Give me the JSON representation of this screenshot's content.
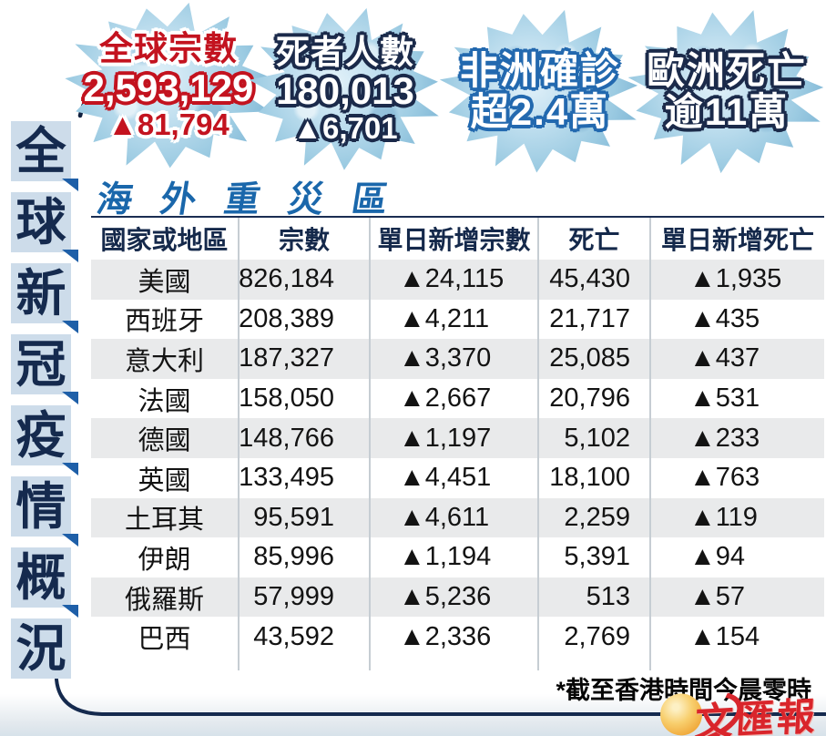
{
  "header_stats": [
    {
      "id": "global-cases",
      "title": "全球宗數",
      "value": "2,593,129",
      "delta": "▲81,794"
    },
    {
      "id": "total-deaths",
      "title": "死者人數",
      "value": "180,013",
      "delta": "▲6,701"
    },
    {
      "id": "africa-confirmed",
      "title": "非洲確診",
      "value": "超2.4萬"
    },
    {
      "id": "europe-deaths",
      "title": "歐洲死亡",
      "value": "逾11萬"
    }
  ],
  "sidebar_title": {
    "text": "全球新冠疫情概況",
    "chars": [
      "全",
      "球",
      "新",
      "冠",
      "疫",
      "情",
      "概",
      "況"
    ]
  },
  "section_title": "海外重災區",
  "table": {
    "headers": [
      "國家或地區",
      "宗數",
      "單日新增宗數",
      "死亡",
      "單日新增死亡"
    ],
    "rows": [
      [
        "美國",
        "826,184",
        "▲24,115",
        "45,430",
        "▲1,935"
      ],
      [
        "西班牙",
        "208,389",
        "▲4,211",
        "21,717",
        "▲435"
      ],
      [
        "意大利",
        "187,327",
        "▲3,370",
        "25,085",
        "▲437"
      ],
      [
        "法國",
        "158,050",
        "▲2,667",
        "20,796",
        "▲531"
      ],
      [
        "德國",
        "148,766",
        "▲1,197",
        "5,102",
        "▲233"
      ],
      [
        "英國",
        "133,495",
        "▲4,451",
        "18,100",
        "▲763"
      ],
      [
        "土耳其",
        "95,591",
        "▲4,611",
        "2,259",
        "▲119"
      ],
      [
        "伊朗",
        "85,996",
        "▲1,194",
        "5,391",
        "▲94"
      ],
      [
        "俄羅斯",
        "57,999",
        "▲5,236",
        "513",
        "▲57"
      ],
      [
        "巴西",
        "43,592",
        "▲2,336",
        "2,769",
        "▲154"
      ]
    ]
  },
  "footnote": "*截至香港時間今晨零時",
  "logo_text": "文匯報",
  "colors": {
    "navy": "#152a4e",
    "title_blue": "#1a67ab",
    "red": "#c3131f",
    "row_alt": "#e9eaeb",
    "virus_blue": "#9ccbe2",
    "sidebar_box": "#cddcea",
    "flag_blue": "#1e5fa8",
    "logo_red": "#d9252b",
    "logo_gold": "#f0a83a"
  },
  "chart_data": {
    "type": "table",
    "title": "海外重災區",
    "columns": [
      "國家或地區",
      "宗數",
      "單日新增宗數",
      "死亡",
      "單日新增死亡"
    ],
    "rows": [
      [
        "美國",
        826184,
        24115,
        45430,
        1935
      ],
      [
        "西班牙",
        208389,
        4211,
        21717,
        435
      ],
      [
        "意大利",
        187327,
        3370,
        25085,
        437
      ],
      [
        "法國",
        158050,
        2667,
        20796,
        531
      ],
      [
        "德國",
        148766,
        1197,
        5102,
        233
      ],
      [
        "英國",
        133495,
        4451,
        18100,
        763
      ],
      [
        "土耳其",
        95591,
        4611,
        2259,
        119
      ],
      [
        "伊朗",
        85996,
        1194,
        5391,
        94
      ],
      [
        "俄羅斯",
        57999,
        5236,
        513,
        57
      ],
      [
        "巴西",
        43592,
        2336,
        2769,
        154
      ]
    ],
    "summary_stats": [
      {
        "label": "全球宗數",
        "value": 2593129,
        "daily_change": 81794
      },
      {
        "label": "死者人數",
        "value": 180013,
        "daily_change": 6701
      },
      {
        "label": "非洲確診",
        "value_text": "超2.4萬"
      },
      {
        "label": "歐洲死亡",
        "value_text": "逾11萬"
      }
    ],
    "footnote": "*截至香港時間今晨零時"
  }
}
